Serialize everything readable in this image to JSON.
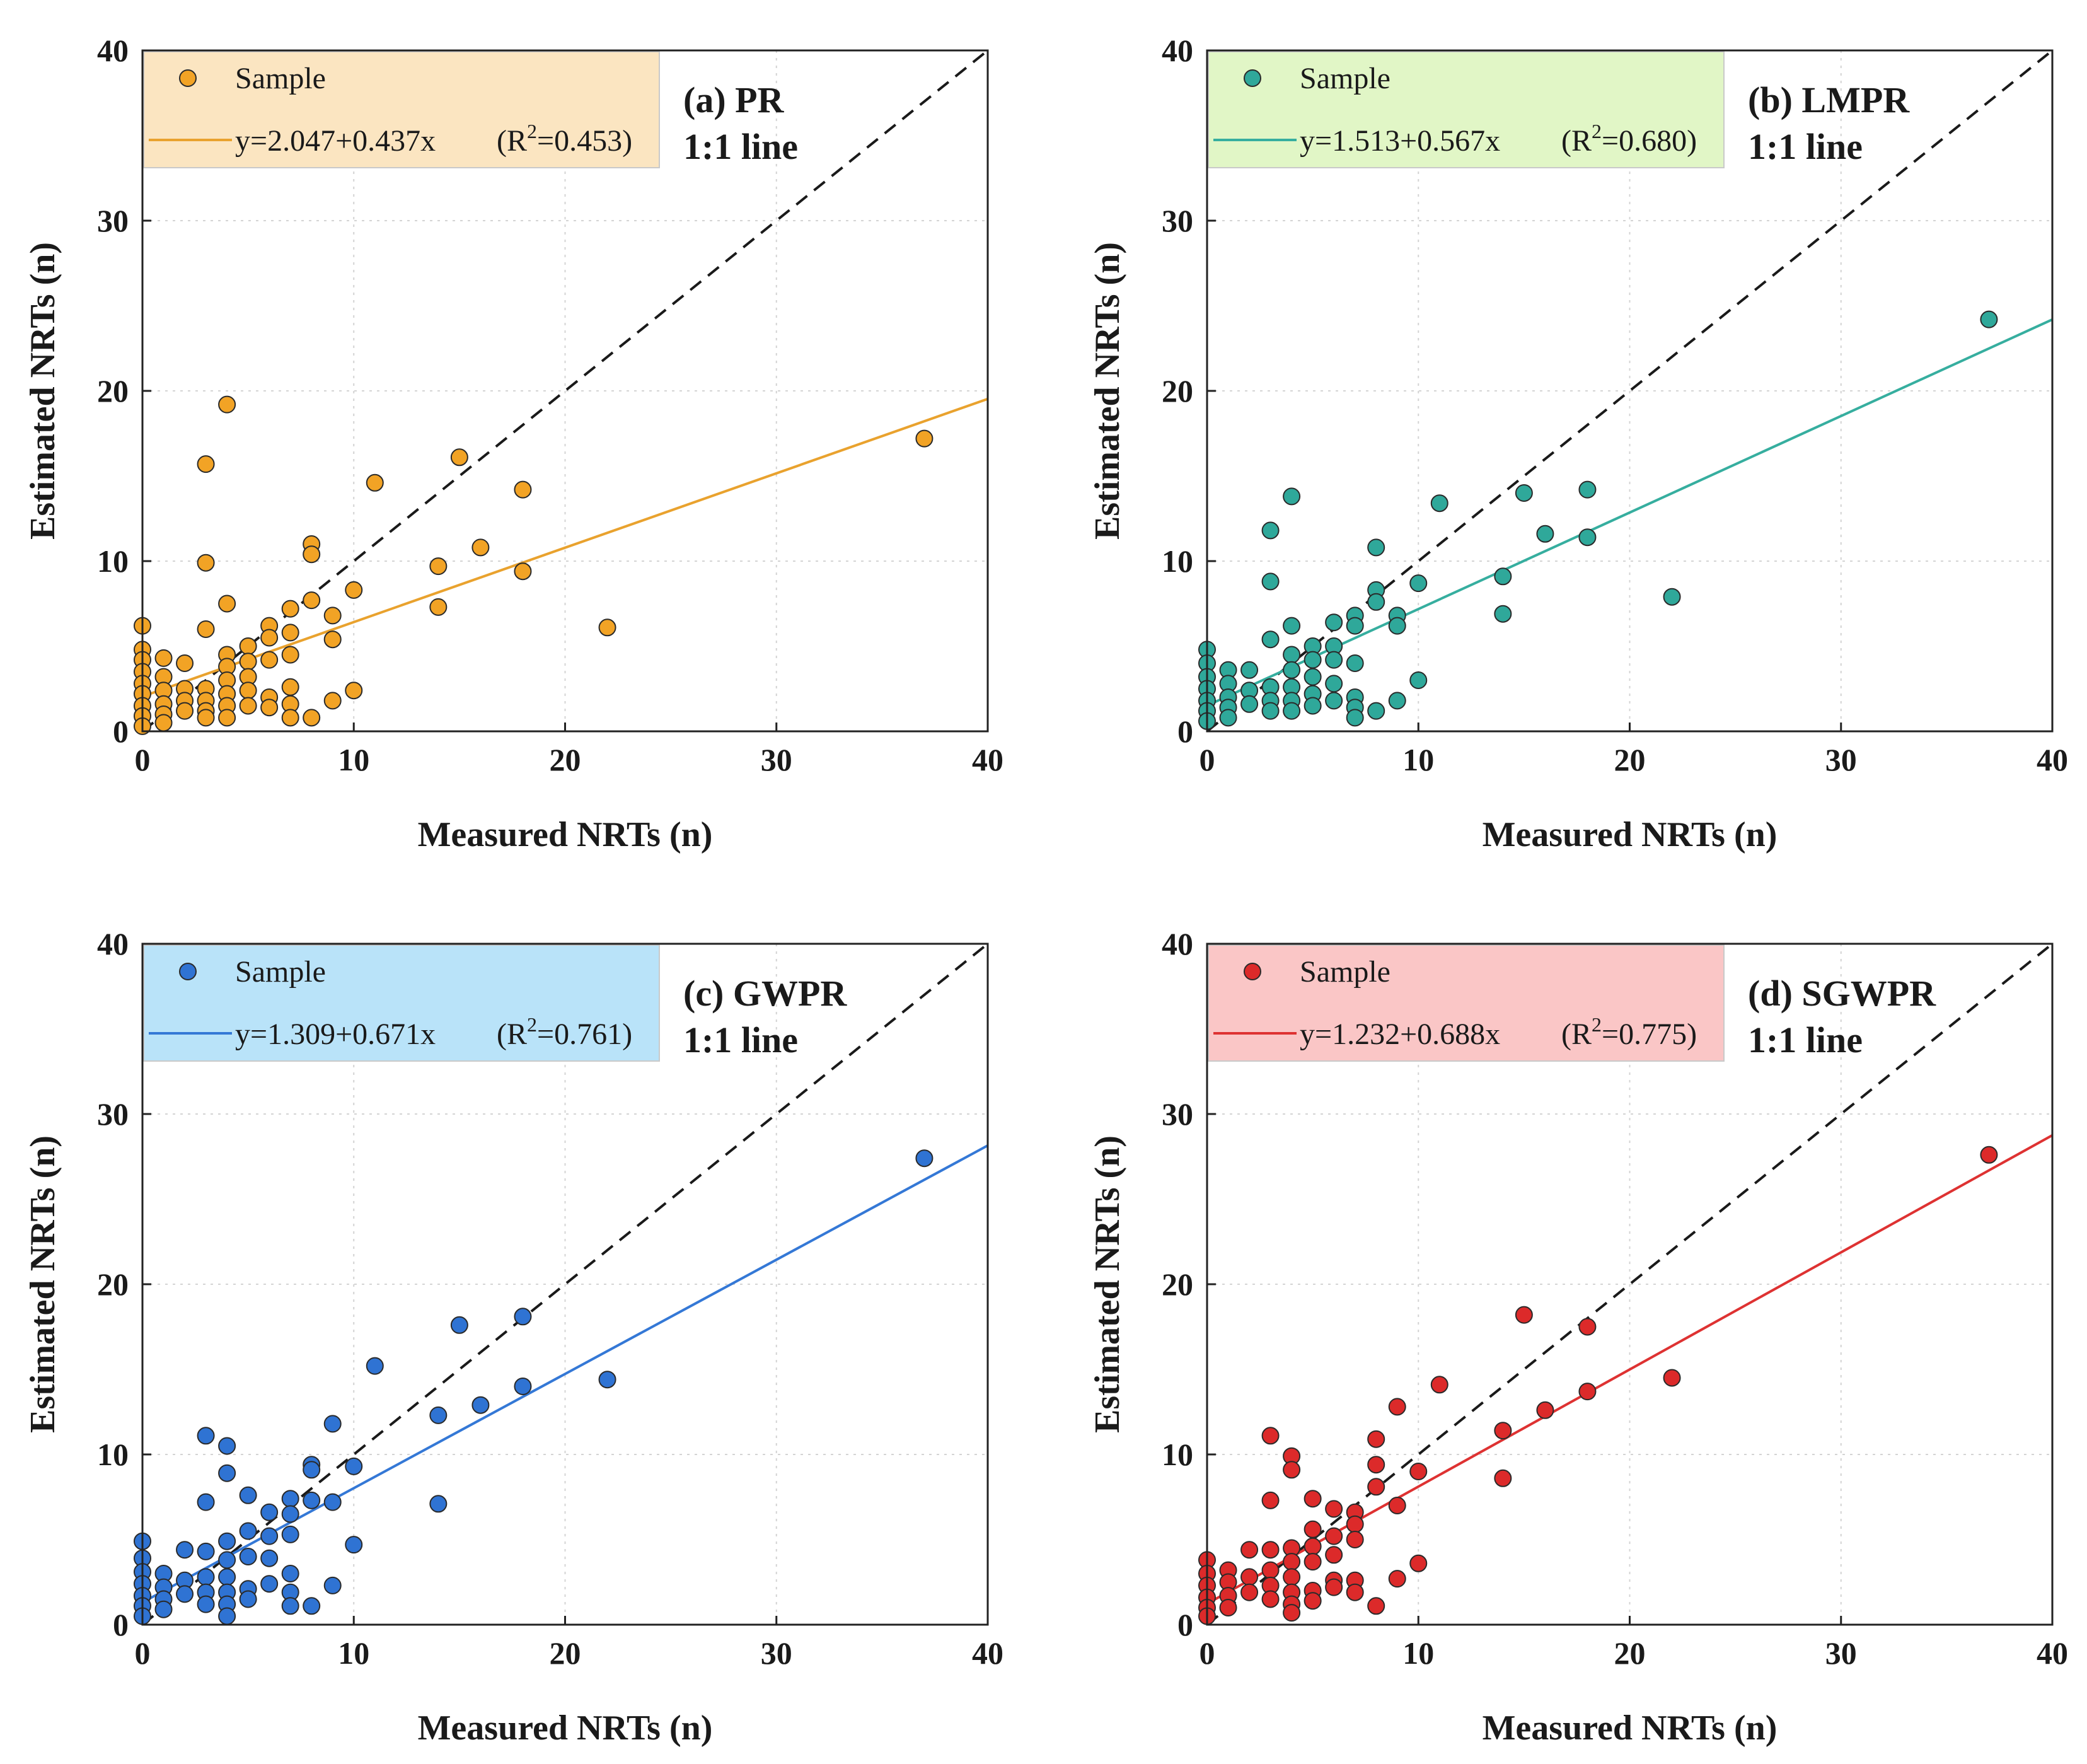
{
  "chart_data": [
    {
      "type": "scatter",
      "panel_label": "(a) PR",
      "ref_label": "1:1 line",
      "xlabel": "Measured NRTs (n)",
      "ylabel": "Estimated NRTs (n)",
      "xlim": [
        0,
        40
      ],
      "ylim": [
        0,
        40
      ],
      "xticks": [
        "0",
        "10",
        "20",
        "30",
        "40"
      ],
      "yticks": [
        "0",
        "10",
        "20",
        "30",
        "40"
      ],
      "grid": true,
      "legend_position": "top-left",
      "legend": {
        "sample_label": "Sample",
        "equation": "y=2.047+0.437x",
        "r2_prefix": "(R",
        "r2_sup": "2",
        "r2_value": "=0.453)"
      },
      "fit": {
        "intercept": 2.047,
        "slope": 0.437
      },
      "colors": {
        "marker": "#F2A325",
        "line": "#E9A22E",
        "legend_bg": "#FBE5C1"
      },
      "points": [
        [
          0,
          6.2
        ],
        [
          0,
          4.8
        ],
        [
          0,
          4.2
        ],
        [
          0,
          3.5
        ],
        [
          0,
          2.8
        ],
        [
          0,
          2.2
        ],
        [
          0,
          1.5
        ],
        [
          0,
          0.9
        ],
        [
          0,
          0.3
        ],
        [
          1,
          4.3
        ],
        [
          1,
          3.2
        ],
        [
          1,
          2.4
        ],
        [
          1,
          1.6
        ],
        [
          1,
          1.0
        ],
        [
          1,
          0.5
        ],
        [
          2,
          4.0
        ],
        [
          2,
          2.5
        ],
        [
          2,
          1.8
        ],
        [
          2,
          1.2
        ],
        [
          3,
          15.7
        ],
        [
          3,
          9.9
        ],
        [
          3,
          6.0
        ],
        [
          3,
          2.5
        ],
        [
          3,
          1.8
        ],
        [
          3,
          1.2
        ],
        [
          3,
          0.8
        ],
        [
          4,
          19.2
        ],
        [
          4,
          7.5
        ],
        [
          4,
          4.5
        ],
        [
          4,
          3.8
        ],
        [
          4,
          3.0
        ],
        [
          4,
          2.2
        ],
        [
          4,
          1.5
        ],
        [
          4,
          0.8
        ],
        [
          5,
          5.0
        ],
        [
          5,
          4.1
        ],
        [
          5,
          3.2
        ],
        [
          5,
          2.4
        ],
        [
          5,
          1.5
        ],
        [
          6,
          6.2
        ],
        [
          6,
          5.5
        ],
        [
          6,
          4.2
        ],
        [
          6,
          2.0
        ],
        [
          6,
          1.4
        ],
        [
          7,
          7.2
        ],
        [
          7,
          5.8
        ],
        [
          7,
          4.5
        ],
        [
          7,
          2.6
        ],
        [
          7,
          1.6
        ],
        [
          7,
          0.8
        ],
        [
          8,
          11.0
        ],
        [
          8,
          10.4
        ],
        [
          8,
          7.7
        ],
        [
          8,
          0.8
        ],
        [
          9,
          6.8
        ],
        [
          9,
          5.4
        ],
        [
          9,
          1.8
        ],
        [
          10,
          8.3
        ],
        [
          10,
          2.4
        ],
        [
          11,
          14.6
        ],
        [
          14,
          9.7
        ],
        [
          14,
          7.3
        ],
        [
          15,
          16.1
        ],
        [
          16,
          10.8
        ],
        [
          18,
          14.2
        ],
        [
          18,
          9.4
        ],
        [
          22,
          6.1
        ],
        [
          37,
          17.2
        ]
      ]
    },
    {
      "type": "scatter",
      "panel_label": "(b) LMPR",
      "ref_label": "1:1 line",
      "xlabel": "Measured NRTs (n)",
      "ylabel": "Estimated NRTs (n)",
      "xlim": [
        0,
        40
      ],
      "ylim": [
        0,
        40
      ],
      "xticks": [
        "0",
        "10",
        "20",
        "30",
        "40"
      ],
      "yticks": [
        "0",
        "10",
        "20",
        "30",
        "40"
      ],
      "grid": true,
      "legend_position": "top-left",
      "legend": {
        "sample_label": "Sample",
        "equation": "y=1.513+0.567x",
        "r2_prefix": "(R",
        "r2_sup": "2",
        "r2_value": "=0.680)"
      },
      "fit": {
        "intercept": 1.513,
        "slope": 0.567
      },
      "colors": {
        "marker": "#2FA89A",
        "line": "#36AE9F",
        "legend_bg": "#E1F6C6"
      },
      "points": [
        [
          0,
          4.8
        ],
        [
          0,
          4.0
        ],
        [
          0,
          3.2
        ],
        [
          0,
          2.5
        ],
        [
          0,
          1.8
        ],
        [
          0,
          1.2
        ],
        [
          0,
          0.6
        ],
        [
          1,
          3.6
        ],
        [
          1,
          2.8
        ],
        [
          1,
          2.0
        ],
        [
          1,
          1.4
        ],
        [
          1,
          0.8
        ],
        [
          2,
          3.6
        ],
        [
          2,
          2.4
        ],
        [
          2,
          1.6
        ],
        [
          3,
          11.8
        ],
        [
          3,
          8.8
        ],
        [
          3,
          5.4
        ],
        [
          3,
          2.6
        ],
        [
          3,
          1.8
        ],
        [
          3,
          1.2
        ],
        [
          4,
          13.8
        ],
        [
          4,
          6.2
        ],
        [
          4,
          4.5
        ],
        [
          4,
          3.6
        ],
        [
          4,
          2.6
        ],
        [
          4,
          1.8
        ],
        [
          4,
          1.2
        ],
        [
          5,
          5.0
        ],
        [
          5,
          4.2
        ],
        [
          5,
          3.2
        ],
        [
          5,
          2.2
        ],
        [
          5,
          1.5
        ],
        [
          6,
          6.4
        ],
        [
          6,
          5.0
        ],
        [
          6,
          4.2
        ],
        [
          6,
          2.8
        ],
        [
          6,
          1.8
        ],
        [
          7,
          6.8
        ],
        [
          7,
          6.2
        ],
        [
          7,
          4.0
        ],
        [
          7,
          2.0
        ],
        [
          7,
          1.4
        ],
        [
          7,
          0.8
        ],
        [
          8,
          10.8
        ],
        [
          8,
          8.3
        ],
        [
          8,
          7.6
        ],
        [
          8,
          1.2
        ],
        [
          9,
          6.8
        ],
        [
          9,
          6.2
        ],
        [
          9,
          1.8
        ],
        [
          10,
          8.7
        ],
        [
          10,
          3.0
        ],
        [
          11,
          13.4
        ],
        [
          14,
          9.1
        ],
        [
          14,
          6.9
        ],
        [
          15,
          14.0
        ],
        [
          16,
          11.6
        ],
        [
          18,
          14.2
        ],
        [
          18,
          11.4
        ],
        [
          22,
          7.9
        ],
        [
          37,
          24.2
        ]
      ]
    },
    {
      "type": "scatter",
      "panel_label": "(c) GWPR",
      "ref_label": "1:1 line",
      "xlabel": "Measured NRTs (n)",
      "ylabel": "Estimated NRTs (n)",
      "xlim": [
        0,
        40
      ],
      "ylim": [
        0,
        40
      ],
      "xticks": [
        "0",
        "10",
        "20",
        "30",
        "40"
      ],
      "yticks": [
        "0",
        "10",
        "20",
        "30",
        "40"
      ],
      "grid": true,
      "legend_position": "top-left",
      "legend": {
        "sample_label": "Sample",
        "equation": "y=1.309+0.671x",
        "r2_prefix": "(R",
        "r2_sup": "2",
        "r2_value": "=0.761)"
      },
      "fit": {
        "intercept": 1.309,
        "slope": 0.671
      },
      "colors": {
        "marker": "#2F73D3",
        "line": "#3478D6",
        "legend_bg": "#B9E3F9"
      },
      "points": [
        [
          0,
          4.9
        ],
        [
          0,
          3.9
        ],
        [
          0,
          3.1
        ],
        [
          0,
          2.4
        ],
        [
          0,
          1.7
        ],
        [
          0,
          1.1
        ],
        [
          0,
          0.5
        ],
        [
          1,
          3.0
        ],
        [
          1,
          2.2
        ],
        [
          1,
          1.5
        ],
        [
          1,
          0.9
        ],
        [
          2,
          4.4
        ],
        [
          2,
          2.6
        ],
        [
          2,
          1.8
        ],
        [
          3,
          11.1
        ],
        [
          3,
          7.2
        ],
        [
          3,
          4.3
        ],
        [
          3,
          2.8
        ],
        [
          3,
          1.9
        ],
        [
          3,
          1.2
        ],
        [
          4,
          10.5
        ],
        [
          4,
          8.9
        ],
        [
          4,
          4.9
        ],
        [
          4,
          3.8
        ],
        [
          4,
          2.8
        ],
        [
          4,
          1.9
        ],
        [
          4,
          1.2
        ],
        [
          4,
          0.5
        ],
        [
          5,
          7.6
        ],
        [
          5,
          5.5
        ],
        [
          5,
          4.0
        ],
        [
          5,
          2.1
        ],
        [
          5,
          1.5
        ],
        [
          6,
          6.6
        ],
        [
          6,
          5.2
        ],
        [
          6,
          3.9
        ],
        [
          6,
          2.4
        ],
        [
          7,
          7.4
        ],
        [
          7,
          6.5
        ],
        [
          7,
          5.3
        ],
        [
          7,
          3.0
        ],
        [
          7,
          1.9
        ],
        [
          7,
          1.1
        ],
        [
          8,
          9.4
        ],
        [
          8,
          9.1
        ],
        [
          8,
          7.3
        ],
        [
          8,
          1.1
        ],
        [
          9,
          11.8
        ],
        [
          9,
          7.2
        ],
        [
          9,
          2.3
        ],
        [
          10,
          9.3
        ],
        [
          10,
          4.7
        ],
        [
          11,
          15.2
        ],
        [
          14,
          12.3
        ],
        [
          14,
          7.1
        ],
        [
          15,
          17.6
        ],
        [
          16,
          12.9
        ],
        [
          18,
          18.1
        ],
        [
          18,
          14.0
        ],
        [
          22,
          14.4
        ],
        [
          37,
          27.4
        ]
      ]
    },
    {
      "type": "scatter",
      "panel_label": "(d) SGWPR",
      "ref_label": "1:1 line",
      "xlabel": "Measured NRTs (n)",
      "ylabel": "Estimated NRTs (n)",
      "xlim": [
        0,
        40
      ],
      "ylim": [
        0,
        40
      ],
      "xticks": [
        "0",
        "10",
        "20",
        "30",
        "40"
      ],
      "yticks": [
        "0",
        "10",
        "20",
        "30",
        "40"
      ],
      "grid": true,
      "legend_position": "top-left",
      "legend": {
        "sample_label": "Sample",
        "equation": "y=1.232+0.688x",
        "r2_prefix": "(R",
        "r2_sup": "2",
        "r2_value": "=0.775)"
      },
      "fit": {
        "intercept": 1.232,
        "slope": 0.688
      },
      "colors": {
        "marker": "#DC2A2A",
        "line": "#DE3232",
        "legend_bg": "#FAC6C6"
      },
      "points": [
        [
          0,
          3.8
        ],
        [
          0,
          3.0
        ],
        [
          0,
          2.3
        ],
        [
          0,
          1.6
        ],
        [
          0,
          1.0
        ],
        [
          0,
          0.5
        ],
        [
          1,
          3.2
        ],
        [
          1,
          2.5
        ],
        [
          1,
          1.7
        ],
        [
          1,
          1.0
        ],
        [
          2,
          4.4
        ],
        [
          2,
          2.8
        ],
        [
          2,
          1.9
        ],
        [
          3,
          11.1
        ],
        [
          3,
          7.3
        ],
        [
          3,
          4.4
        ],
        [
          3,
          3.2
        ],
        [
          3,
          2.3
        ],
        [
          3,
          1.5
        ],
        [
          4,
          9.9
        ],
        [
          4,
          9.1
        ],
        [
          4,
          4.5
        ],
        [
          4,
          3.7
        ],
        [
          4,
          2.8
        ],
        [
          4,
          1.9
        ],
        [
          4,
          1.2
        ],
        [
          4,
          0.7
        ],
        [
          5,
          7.4
        ],
        [
          5,
          5.6
        ],
        [
          5,
          4.6
        ],
        [
          5,
          3.7
        ],
        [
          5,
          2.0
        ],
        [
          5,
          1.4
        ],
        [
          6,
          6.8
        ],
        [
          6,
          5.2
        ],
        [
          6,
          4.1
        ],
        [
          6,
          2.6
        ],
        [
          6,
          2.2
        ],
        [
          7,
          6.6
        ],
        [
          7,
          5.9
        ],
        [
          7,
          5.0
        ],
        [
          7,
          2.6
        ],
        [
          7,
          1.9
        ],
        [
          8,
          10.9
        ],
        [
          8,
          9.4
        ],
        [
          8,
          8.1
        ],
        [
          8,
          1.1
        ],
        [
          9,
          12.8
        ],
        [
          9,
          7.0
        ],
        [
          9,
          2.7
        ],
        [
          10,
          9.0
        ],
        [
          10,
          3.6
        ],
        [
          11,
          14.1
        ],
        [
          14,
          11.4
        ],
        [
          14,
          8.6
        ],
        [
          15,
          18.2
        ],
        [
          16,
          12.6
        ],
        [
          18,
          17.5
        ],
        [
          18,
          13.7
        ],
        [
          22,
          14.5
        ],
        [
          37,
          27.6
        ]
      ]
    }
  ]
}
